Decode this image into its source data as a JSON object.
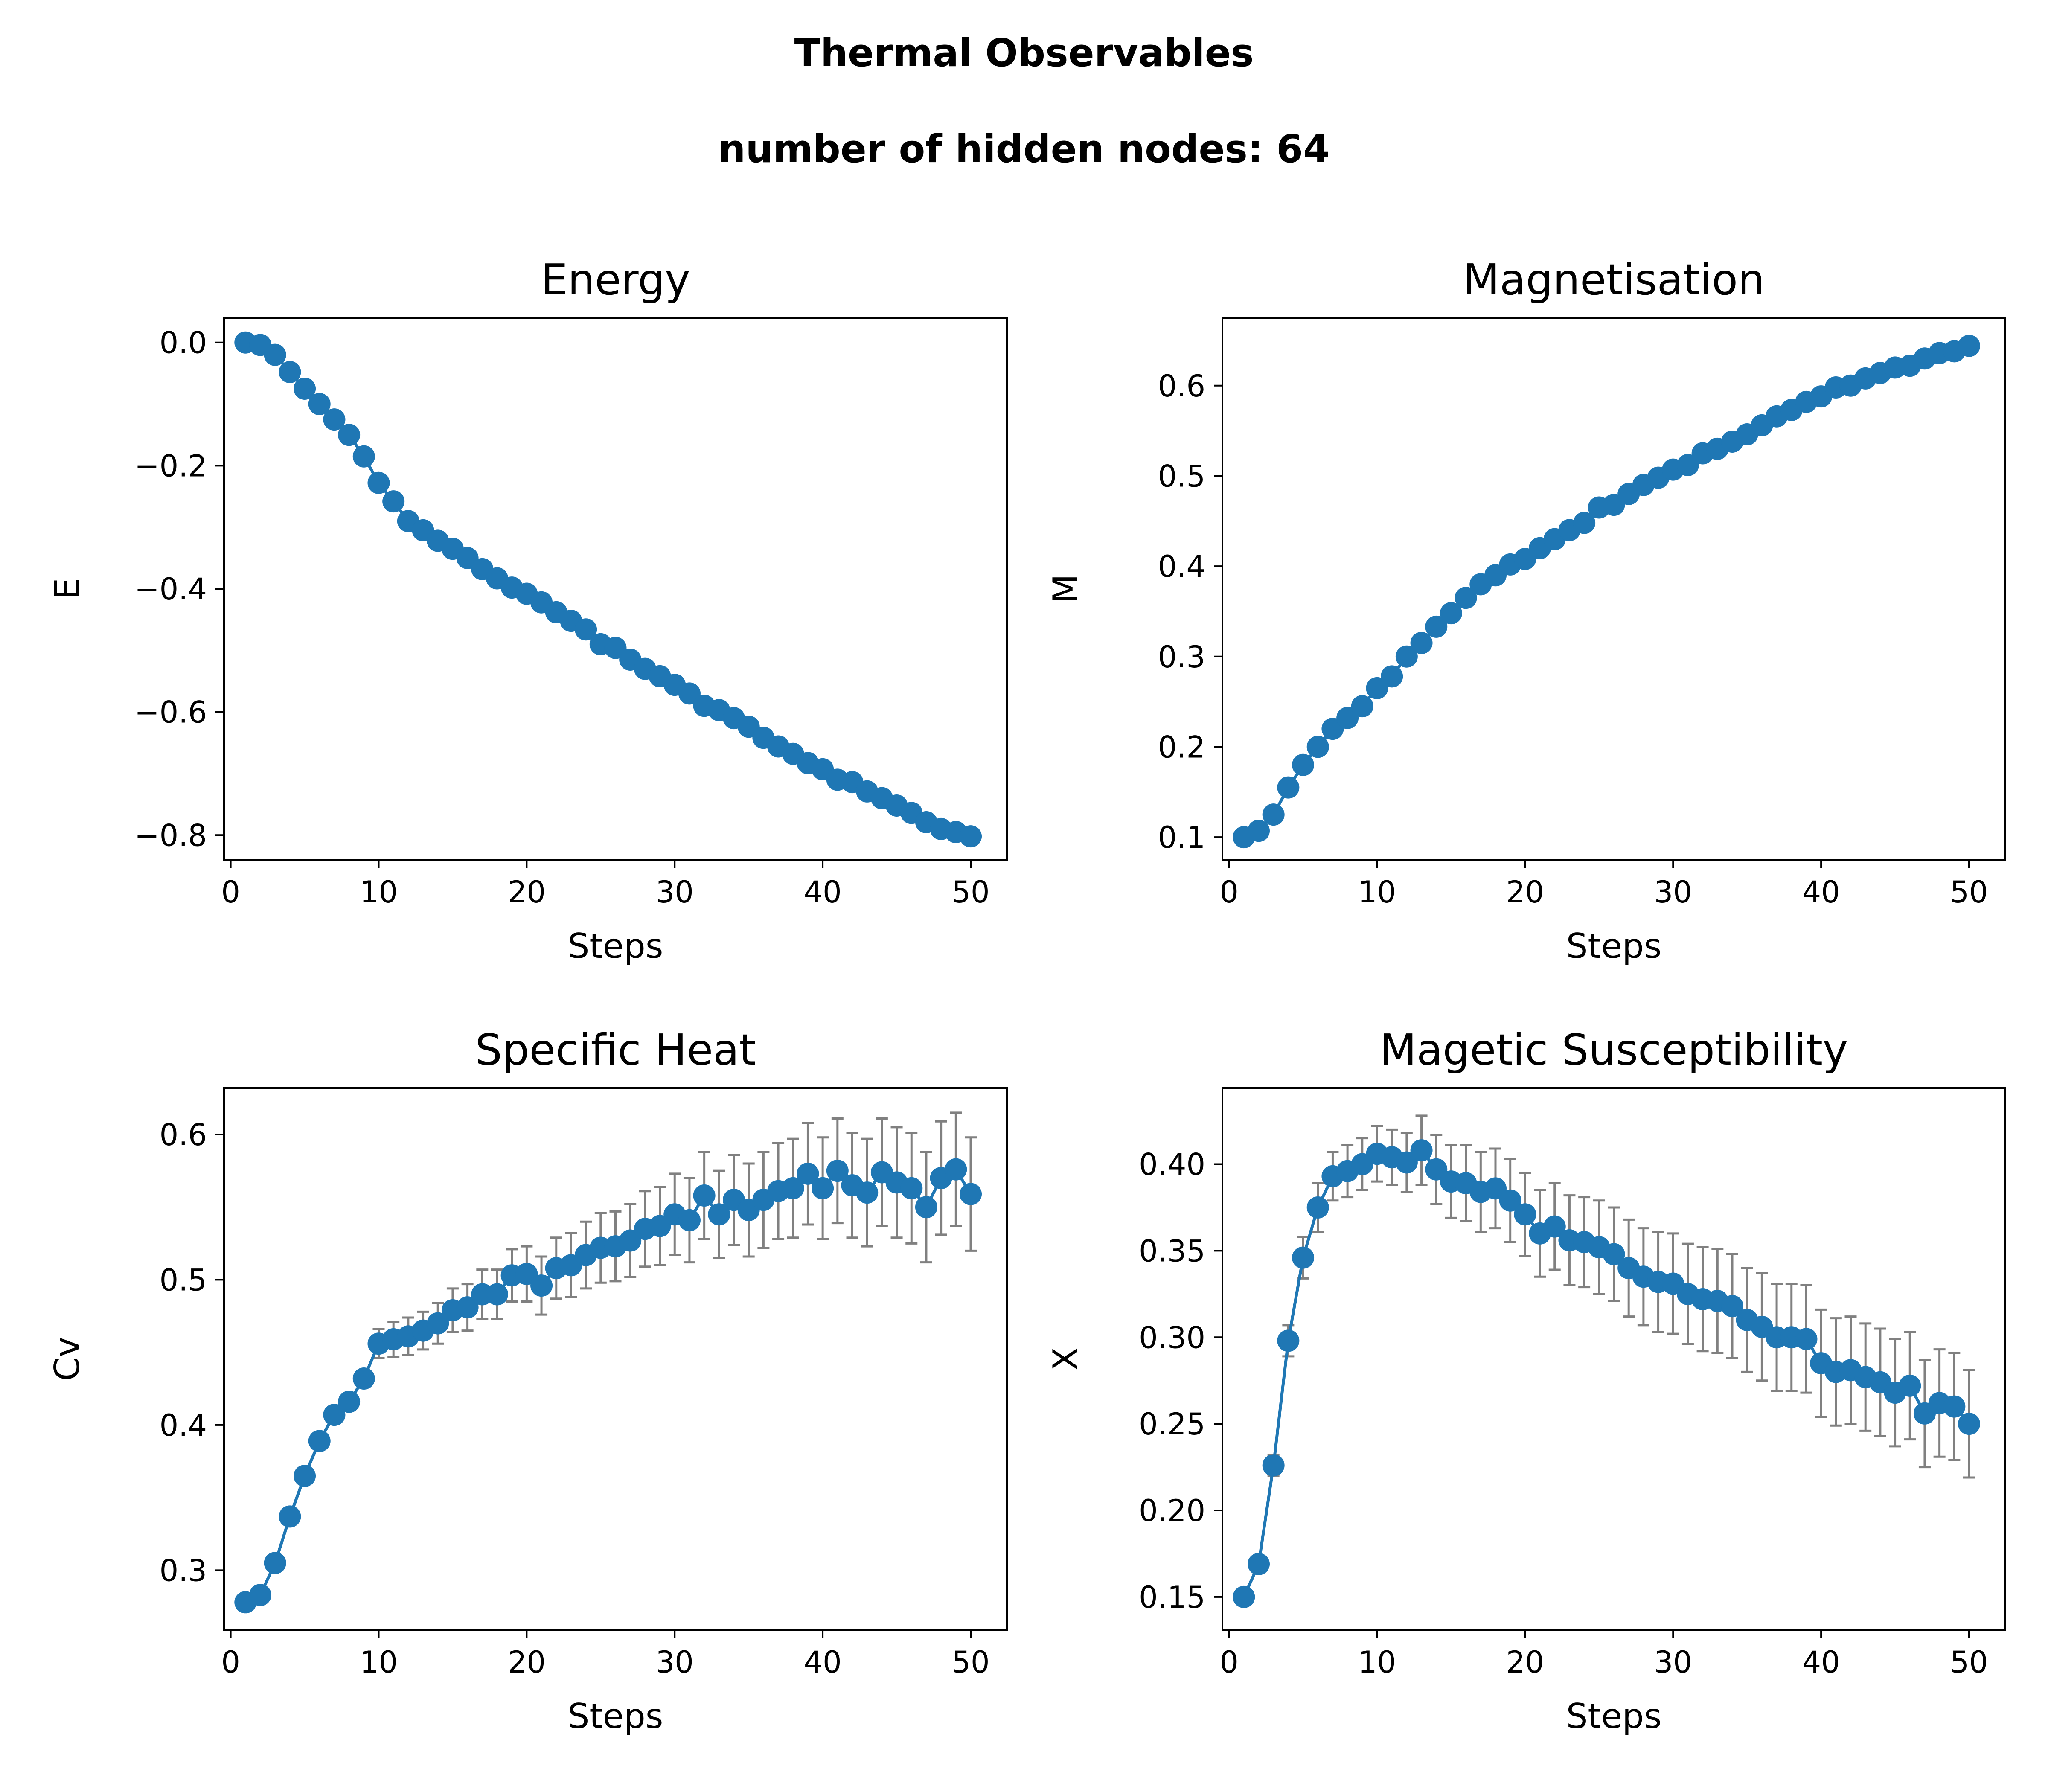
{
  "figure": {
    "title": "Thermal Observables",
    "subtitle": "number of hidden nodes: 64"
  },
  "chart_data": [
    {
      "type": "line",
      "title": "Energy",
      "xlabel": "Steps",
      "ylabel": "E",
      "xlim": [
        -0.45,
        52.45
      ],
      "ylim": [
        -0.84,
        0.04
      ],
      "xticks": [
        0,
        10,
        20,
        30,
        40,
        50
      ],
      "xtick_labels": [
        "0",
        "10",
        "20",
        "30",
        "40",
        "50"
      ],
      "yticks": [
        0.0,
        -0.2,
        -0.4,
        -0.6,
        -0.8
      ],
      "ytick_labels": [
        "0.0",
        "−0.2",
        "−0.4",
        "−0.6",
        "−0.8"
      ],
      "grid": false,
      "color": "#1f77b4",
      "series": [
        {
          "x": [
            1,
            2,
            3,
            4,
            5,
            6,
            7,
            8,
            9,
            10,
            11,
            12,
            13,
            14,
            15,
            16,
            17,
            18,
            19,
            20,
            21,
            22,
            23,
            24,
            25,
            26,
            27,
            28,
            29,
            30,
            31,
            32,
            33,
            34,
            35,
            36,
            37,
            38,
            39,
            40,
            41,
            42,
            43,
            44,
            45,
            46,
            47,
            48,
            49,
            50
          ],
          "y": [
            0.0,
            -0.004,
            -0.02,
            -0.048,
            -0.075,
            -0.1,
            -0.125,
            -0.15,
            -0.185,
            -0.228,
            -0.258,
            -0.29,
            -0.305,
            -0.322,
            -0.335,
            -0.35,
            -0.368,
            -0.383,
            -0.398,
            -0.408,
            -0.422,
            -0.438,
            -0.452,
            -0.466,
            -0.49,
            -0.496,
            -0.515,
            -0.53,
            -0.542,
            -0.556,
            -0.57,
            -0.59,
            -0.597,
            -0.61,
            -0.624,
            -0.642,
            -0.656,
            -0.668,
            -0.683,
            -0.693,
            -0.71,
            -0.714,
            -0.729,
            -0.74,
            -0.752,
            -0.764,
            -0.779,
            -0.79,
            -0.795,
            -0.802
          ]
        }
      ]
    },
    {
      "type": "line",
      "title": "Magnetisation",
      "xlabel": "Steps",
      "ylabel": "M",
      "xlim": [
        -0.45,
        52.45
      ],
      "ylim": [
        0.075,
        0.675
      ],
      "xticks": [
        0,
        10,
        20,
        30,
        40,
        50
      ],
      "xtick_labels": [
        "0",
        "10",
        "20",
        "30",
        "40",
        "50"
      ],
      "yticks": [
        0.1,
        0.2,
        0.3,
        0.4,
        0.5,
        0.6
      ],
      "ytick_labels": [
        "0.1",
        "0.2",
        "0.3",
        "0.4",
        "0.5",
        "0.6"
      ],
      "grid": false,
      "color": "#1f77b4",
      "series": [
        {
          "x": [
            1,
            2,
            3,
            4,
            5,
            6,
            7,
            8,
            9,
            10,
            11,
            12,
            13,
            14,
            15,
            16,
            17,
            18,
            19,
            20,
            21,
            22,
            23,
            24,
            25,
            26,
            27,
            28,
            29,
            30,
            31,
            32,
            33,
            34,
            35,
            36,
            37,
            38,
            39,
            40,
            41,
            42,
            43,
            44,
            45,
            46,
            47,
            48,
            49,
            50
          ],
          "y": [
            0.1,
            0.107,
            0.125,
            0.155,
            0.18,
            0.2,
            0.22,
            0.232,
            0.245,
            0.265,
            0.278,
            0.3,
            0.315,
            0.333,
            0.348,
            0.365,
            0.38,
            0.39,
            0.402,
            0.408,
            0.42,
            0.43,
            0.44,
            0.448,
            0.465,
            0.468,
            0.48,
            0.49,
            0.498,
            0.507,
            0.512,
            0.525,
            0.53,
            0.538,
            0.546,
            0.556,
            0.566,
            0.573,
            0.582,
            0.588,
            0.598,
            0.6,
            0.608,
            0.614,
            0.62,
            0.622,
            0.63,
            0.636,
            0.638,
            0.644
          ]
        }
      ]
    },
    {
      "type": "line",
      "title": "Specific Heat",
      "xlabel": "Steps",
      "ylabel": "Cv",
      "xlim": [
        -0.45,
        52.45
      ],
      "ylim": [
        0.259,
        0.632
      ],
      "xticks": [
        0,
        10,
        20,
        30,
        40,
        50
      ],
      "xtick_labels": [
        "0",
        "10",
        "20",
        "30",
        "40",
        "50"
      ],
      "yticks": [
        0.3,
        0.4,
        0.5,
        0.6
      ],
      "ytick_labels": [
        "0.3",
        "0.4",
        "0.5",
        "0.6"
      ],
      "grid": false,
      "color": "#1f77b4",
      "errorbar_color": "#808080",
      "series": [
        {
          "x": [
            1,
            2,
            3,
            4,
            5,
            6,
            7,
            8,
            9,
            10,
            11,
            12,
            13,
            14,
            15,
            16,
            17,
            18,
            19,
            20,
            21,
            22,
            23,
            24,
            25,
            26,
            27,
            28,
            29,
            30,
            31,
            32,
            33,
            34,
            35,
            36,
            37,
            38,
            39,
            40,
            41,
            42,
            43,
            44,
            45,
            46,
            47,
            48,
            49,
            50
          ],
          "y": [
            0.278,
            0.283,
            0.305,
            0.337,
            0.365,
            0.389,
            0.407,
            0.416,
            0.432,
            0.456,
            0.459,
            0.461,
            0.465,
            0.47,
            0.479,
            0.481,
            0.49,
            0.49,
            0.503,
            0.504,
            0.496,
            0.508,
            0.51,
            0.517,
            0.522,
            0.523,
            0.527,
            0.535,
            0.537,
            0.545,
            0.541,
            0.558,
            0.545,
            0.555,
            0.548,
            0.555,
            0.561,
            0.563,
            0.573,
            0.563,
            0.575,
            0.565,
            0.56,
            0.574,
            0.567,
            0.563,
            0.55,
            0.57,
            0.576,
            0.559
          ],
          "error": [
            0,
            0,
            0,
            0,
            0,
            0,
            0,
            0,
            0,
            0.01,
            0.012,
            0.013,
            0.013,
            0.014,
            0.015,
            0.016,
            0.017,
            0.017,
            0.018,
            0.019,
            0.02,
            0.021,
            0.022,
            0.023,
            0.024,
            0.024,
            0.025,
            0.026,
            0.027,
            0.028,
            0.029,
            0.03,
            0.03,
            0.031,
            0.032,
            0.033,
            0.033,
            0.034,
            0.035,
            0.035,
            0.036,
            0.036,
            0.037,
            0.037,
            0.038,
            0.038,
            0.038,
            0.039,
            0.039,
            0.039
          ]
        }
      ]
    },
    {
      "type": "line",
      "title": "Magetic Susceptibility",
      "xlabel": "Steps",
      "ylabel": "X",
      "xlim": [
        -0.45,
        52.45
      ],
      "ylim": [
        0.131,
        0.444
      ],
      "xticks": [
        0,
        10,
        20,
        30,
        40,
        50
      ],
      "xtick_labels": [
        "0",
        "10",
        "20",
        "30",
        "40",
        "50"
      ],
      "yticks": [
        0.15,
        0.2,
        0.25,
        0.3,
        0.35,
        0.4
      ],
      "ytick_labels": [
        "0.15",
        "0.20",
        "0.25",
        "0.30",
        "0.35",
        "0.40"
      ],
      "grid": false,
      "color": "#1f77b4",
      "errorbar_color": "#808080",
      "series": [
        {
          "x": [
            1,
            2,
            3,
            4,
            5,
            6,
            7,
            8,
            9,
            10,
            11,
            12,
            13,
            14,
            15,
            16,
            17,
            18,
            19,
            20,
            21,
            22,
            23,
            24,
            25,
            26,
            27,
            28,
            29,
            30,
            31,
            32,
            33,
            34,
            35,
            36,
            37,
            38,
            39,
            40,
            41,
            42,
            43,
            44,
            45,
            46,
            47,
            48,
            49,
            50
          ],
          "y": [
            0.15,
            0.169,
            0.226,
            0.298,
            0.346,
            0.375,
            0.393,
            0.396,
            0.4,
            0.406,
            0.404,
            0.401,
            0.408,
            0.397,
            0.39,
            0.389,
            0.384,
            0.386,
            0.379,
            0.371,
            0.36,
            0.364,
            0.356,
            0.355,
            0.352,
            0.348,
            0.34,
            0.335,
            0.332,
            0.331,
            0.325,
            0.322,
            0.321,
            0.318,
            0.31,
            0.306,
            0.3,
            0.3,
            0.299,
            0.285,
            0.28,
            0.281,
            0.277,
            0.274,
            0.268,
            0.272,
            0.256,
            0.262,
            0.26,
            0.25
          ],
          "error": [
            0,
            0,
            0.006,
            0.009,
            0.012,
            0.014,
            0.014,
            0.015,
            0.015,
            0.016,
            0.016,
            0.017,
            0.02,
            0.02,
            0.021,
            0.022,
            0.023,
            0.023,
            0.024,
            0.024,
            0.025,
            0.025,
            0.026,
            0.026,
            0.027,
            0.027,
            0.028,
            0.028,
            0.029,
            0.029,
            0.029,
            0.03,
            0.03,
            0.03,
            0.03,
            0.031,
            0.031,
            0.031,
            0.031,
            0.031,
            0.031,
            0.031,
            0.031,
            0.031,
            0.031,
            0.031,
            0.031,
            0.031,
            0.031,
            0.031
          ]
        }
      ]
    }
  ]
}
